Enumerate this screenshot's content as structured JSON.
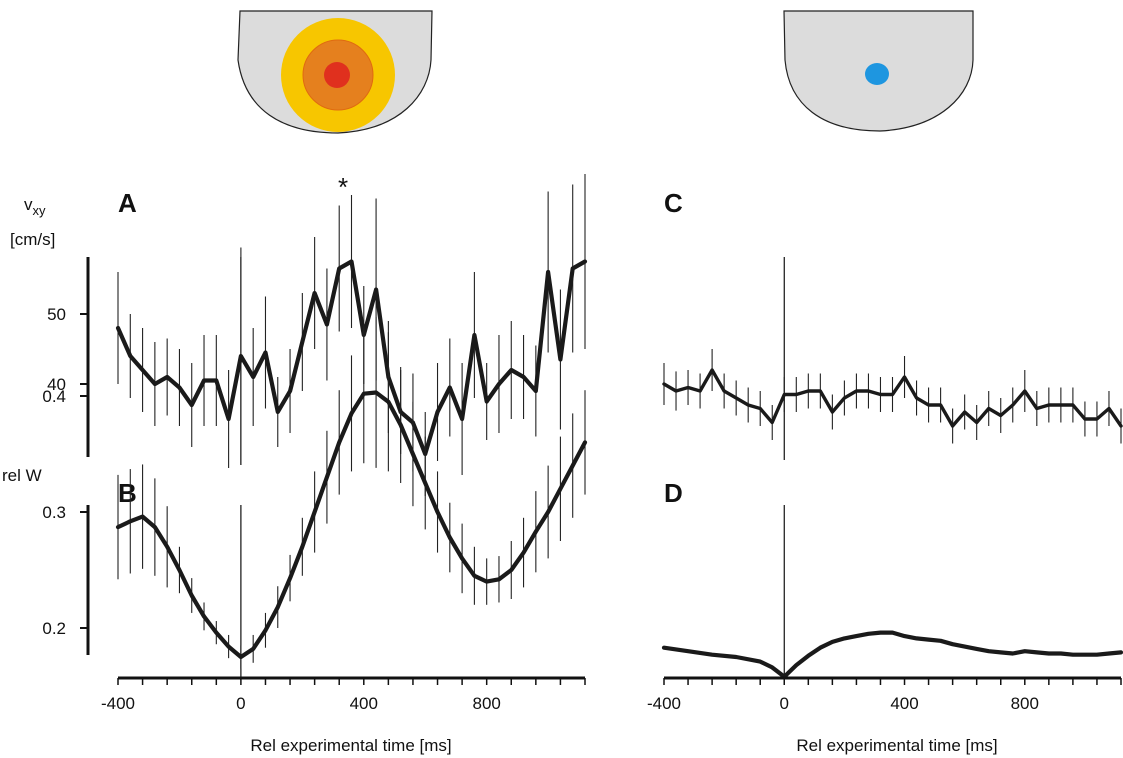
{
  "colors": {
    "background": "#ffffff",
    "line": "#1a1a1a",
    "schematic_fill": "#dcdcdc",
    "schematic_stroke": "#222222",
    "ring_outer": "#f7c600",
    "ring_mid": "#e5801e",
    "ring_inner": "#e0301e",
    "blue_dot": "#1e96e0"
  },
  "schematics": {
    "left": {
      "icon": "hot-spot-rings-icon"
    },
    "right": {
      "icon": "blue-dot-icon"
    }
  },
  "chart_data": [
    {
      "panel": "A",
      "type": "line",
      "ylabel_top": "v",
      "ylabel_sub": "xy",
      "ylabel_units": "[cm/s]",
      "yticks": [
        40,
        50
      ],
      "ylim": [
        30,
        62
      ],
      "xlim": [
        -400,
        1120
      ],
      "annotation": "*",
      "annotation_x": 340,
      "x": [
        -400,
        -360,
        -320,
        -280,
        -240,
        -200,
        -160,
        -120,
        -80,
        -40,
        0,
        40,
        80,
        120,
        160,
        200,
        240,
        280,
        320,
        360,
        400,
        440,
        480,
        520,
        560,
        600,
        640,
        680,
        720,
        760,
        800,
        840,
        880,
        920,
        960,
        1000,
        1040,
        1080,
        1120
      ],
      "values": [
        48,
        44,
        42,
        40,
        41,
        39.5,
        37,
        40.5,
        40.5,
        35,
        44,
        41,
        44.5,
        36,
        39,
        46,
        53,
        48.5,
        56.5,
        57.5,
        47,
        53.5,
        41,
        36,
        34.5,
        30,
        36,
        39.5,
        35,
        47,
        37.5,
        40,
        42,
        41,
        39,
        56,
        43.5,
        56.5,
        57.5
      ],
      "errors": [
        8,
        6,
        6,
        6,
        5.5,
        5.5,
        6,
        6.5,
        6.5,
        7,
        15.5,
        7,
        8,
        5,
        6,
        7,
        8,
        8,
        9,
        9.5,
        7,
        13,
        8,
        6,
        7,
        6,
        7,
        7,
        8,
        9,
        5.5,
        7,
        7,
        6,
        6.5,
        11.5,
        10,
        12,
        12.5
      ]
    },
    {
      "panel": "B",
      "type": "line",
      "ylabel": "rel W",
      "yticks": [
        0.2,
        0.3,
        0.4
      ],
      "ylim": [
        0.15,
        0.42
      ],
      "xlim": [
        -400,
        1120
      ],
      "xlabel": "Rel experimental time [ms]",
      "xticks": [
        -400,
        0,
        400,
        800
      ],
      "x": [
        -400,
        -360,
        -320,
        -280,
        -240,
        -200,
        -160,
        -120,
        -80,
        -40,
        0,
        40,
        80,
        120,
        160,
        200,
        240,
        280,
        320,
        360,
        400,
        440,
        480,
        520,
        560,
        600,
        640,
        680,
        720,
        760,
        800,
        840,
        880,
        920,
        960,
        1000,
        1040,
        1080,
        1120
      ],
      "values": [
        0.287,
        0.292,
        0.296,
        0.287,
        0.27,
        0.25,
        0.228,
        0.21,
        0.196,
        0.184,
        0.175,
        0.182,
        0.198,
        0.218,
        0.243,
        0.27,
        0.3,
        0.33,
        0.36,
        0.385,
        0.402,
        0.403,
        0.395,
        0.375,
        0.35,
        0.325,
        0.3,
        0.278,
        0.26,
        0.245,
        0.24,
        0.242,
        0.25,
        0.265,
        0.283,
        0.3,
        0.32,
        0.34,
        0.36
      ],
      "errors": [
        0.045,
        0.045,
        0.045,
        0.042,
        0.035,
        0.02,
        0.015,
        0.012,
        0.01,
        0.01,
        0.01,
        0.012,
        0.015,
        0.018,
        0.02,
        0.025,
        0.035,
        0.04,
        0.045,
        0.05,
        0.06,
        0.065,
        0.06,
        0.05,
        0.045,
        0.04,
        0.035,
        0.03,
        0.03,
        0.025,
        0.02,
        0.02,
        0.025,
        0.03,
        0.035,
        0.04,
        0.045,
        0.045,
        0.045
      ]
    },
    {
      "panel": "C",
      "type": "line",
      "ylim": [
        30,
        62
      ],
      "xlim": [
        -400,
        1120
      ],
      "x": [
        -400,
        -360,
        -320,
        -280,
        -240,
        -200,
        -160,
        -120,
        -80,
        -40,
        0,
        40,
        80,
        120,
        160,
        200,
        240,
        280,
        320,
        360,
        400,
        440,
        480,
        520,
        560,
        600,
        640,
        680,
        720,
        760,
        800,
        840,
        880,
        920,
        960,
        1000,
        1040,
        1080,
        1120
      ],
      "values": [
        40,
        39,
        39.5,
        39,
        42,
        39,
        38,
        37,
        36.5,
        34.5,
        38.5,
        38.5,
        39,
        39,
        36,
        38,
        39,
        39,
        38.5,
        38.5,
        41,
        38,
        37,
        37,
        34,
        36,
        34.5,
        36.5,
        35.5,
        37,
        39,
        36.5,
        37,
        37,
        37,
        35,
        35,
        36.5,
        34
      ],
      "errors": [
        3,
        2.8,
        2.5,
        2.5,
        3,
        2.5,
        2.5,
        2.5,
        2.5,
        2.5,
        2.5,
        2.5,
        2.5,
        2.5,
        2.5,
        2.5,
        2.5,
        2.5,
        2.5,
        2.5,
        3,
        2.5,
        2.5,
        2.5,
        2.5,
        2.5,
        2.5,
        2.5,
        2.5,
        2.5,
        3,
        2.5,
        2.5,
        2.5,
        2.5,
        2.5,
        2.5,
        2.5,
        2.5
      ]
    },
    {
      "panel": "D",
      "type": "line",
      "ylim": [
        0.15,
        0.42
      ],
      "xlim": [
        -400,
        1120
      ],
      "xlabel": "Rel experimental time [ms]",
      "xticks": [
        -400,
        0,
        400,
        800
      ],
      "x": [
        -400,
        -320,
        -240,
        -160,
        -80,
        -40,
        0,
        40,
        80,
        120,
        160,
        200,
        240,
        280,
        320,
        360,
        400,
        440,
        480,
        520,
        560,
        600,
        640,
        680,
        720,
        760,
        800,
        840,
        880,
        920,
        960,
        1000,
        1040,
        1080,
        1120
      ],
      "values": [
        0.183,
        0.18,
        0.177,
        0.175,
        0.171,
        0.166,
        0.158,
        0.168,
        0.176,
        0.183,
        0.188,
        0.191,
        0.193,
        0.195,
        0.196,
        0.196,
        0.193,
        0.191,
        0.19,
        0.189,
        0.186,
        0.184,
        0.182,
        0.18,
        0.179,
        0.178,
        0.18,
        0.179,
        0.178,
        0.178,
        0.177,
        0.177,
        0.177,
        0.178,
        0.179
      ],
      "errors": []
    }
  ]
}
